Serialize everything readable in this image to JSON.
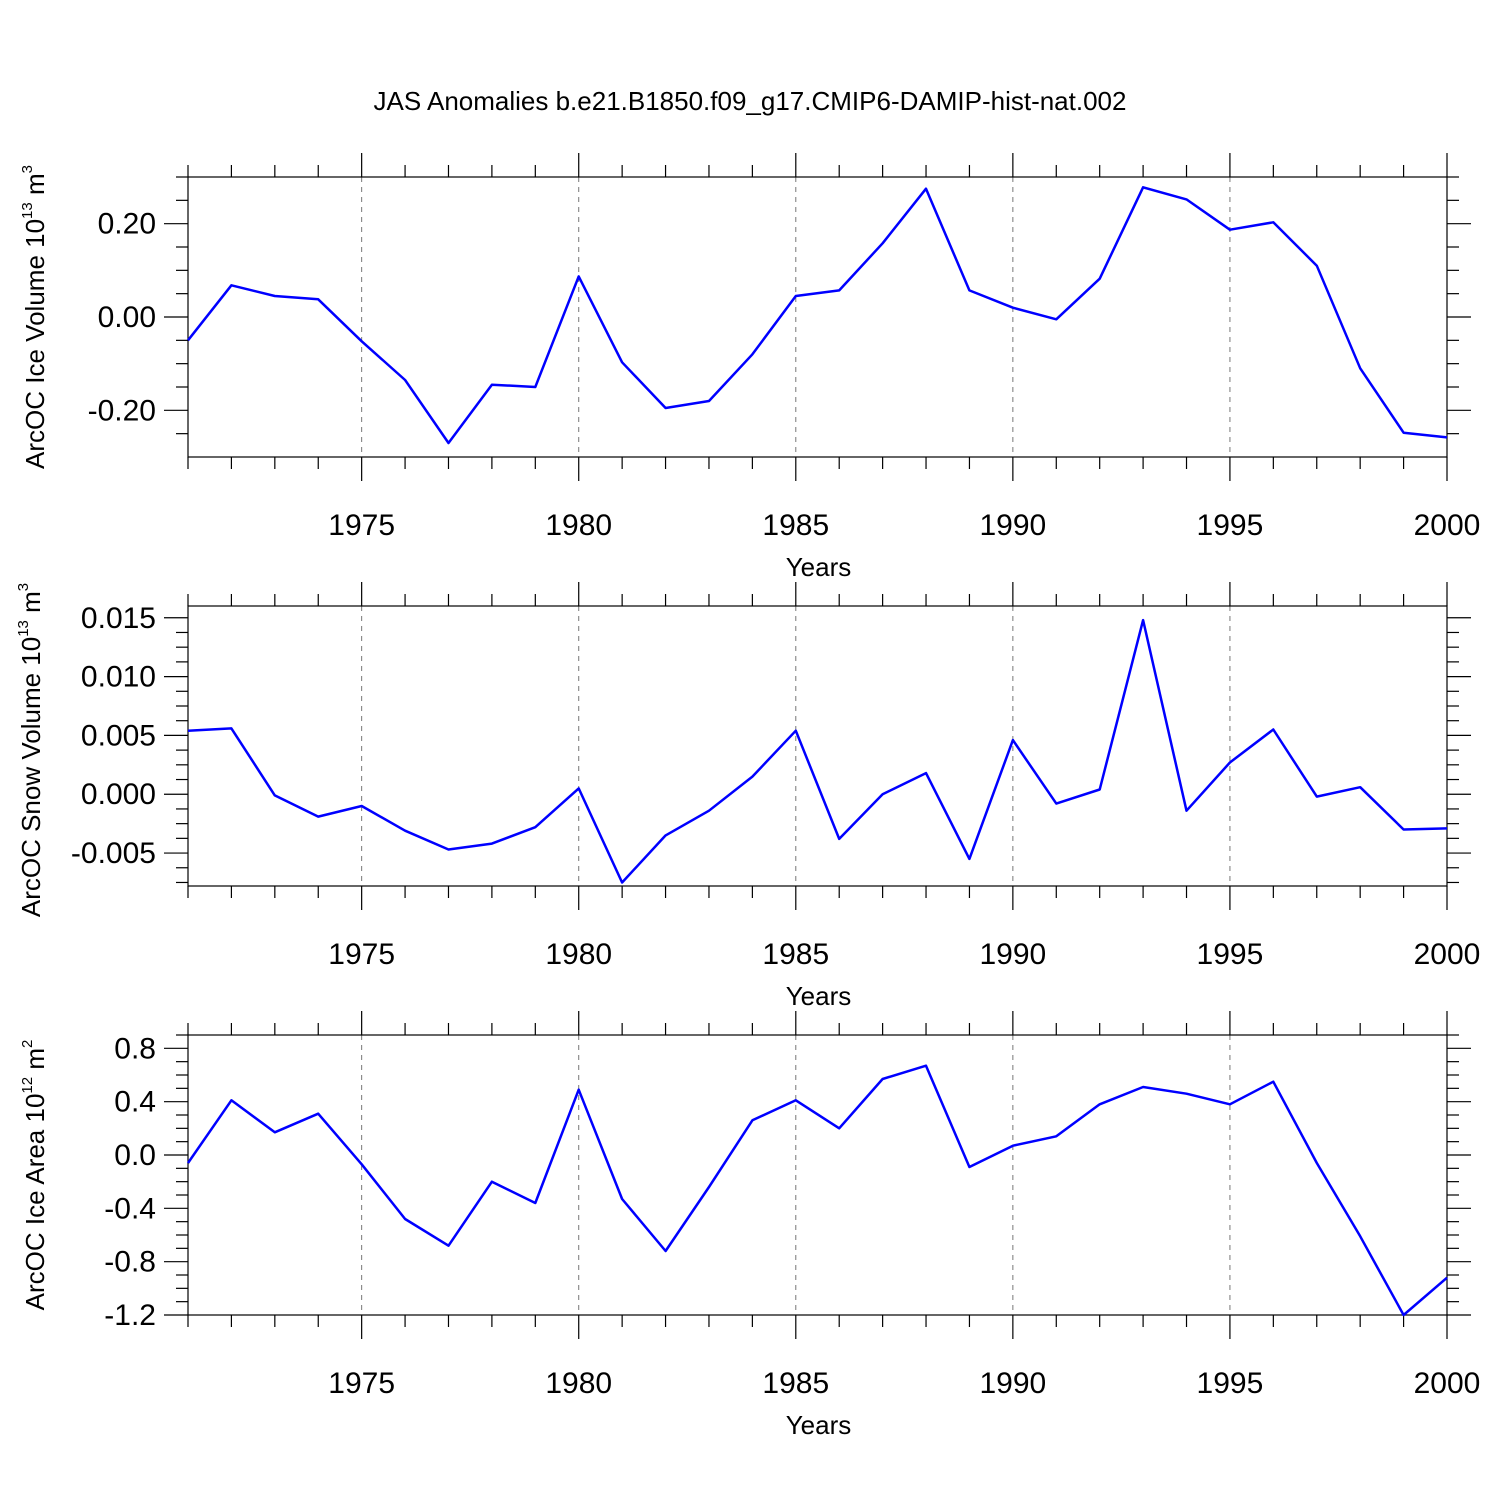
{
  "title": "JAS Anomalies b.e21.B1850.f09_g17.CMIP6-DAMIP-hist-nat.002",
  "colors": {
    "line": "#0000ff",
    "axes": "#000000",
    "grid": "#777777"
  },
  "chart_data": [
    {
      "type": "line",
      "xlabel": "Years",
      "ylabel": "ArcOC Ice Volume 10",
      "ylabel_exp": "13",
      "ylabel_unit": "m",
      "ylabel_unit_exp": "3",
      "xlim": [
        1971,
        2000
      ],
      "ylim": [
        -0.3,
        0.3
      ],
      "xticks": [
        "1975",
        "1980",
        "1985",
        "1990",
        "1995",
        "2000"
      ],
      "yticks": [
        "0.20",
        "0.00",
        "-0.20"
      ],
      "grid": "dashed vertical at major x ticks",
      "x": [
        1971,
        1972,
        1973,
        1974,
        1975,
        1976,
        1977,
        1978,
        1979,
        1980,
        1981,
        1982,
        1983,
        1984,
        1985,
        1986,
        1987,
        1988,
        1989,
        1990,
        1991,
        1992,
        1993,
        1994,
        1995,
        1996,
        1997,
        1998,
        1999,
        2000
      ],
      "values": [
        -0.05,
        0.068,
        0.045,
        0.038,
        -0.052,
        -0.135,
        -0.27,
        -0.145,
        -0.15,
        0.087,
        -0.097,
        -0.195,
        -0.18,
        -0.08,
        0.045,
        0.057,
        0.158,
        0.275,
        0.057,
        0.02,
        -0.005,
        0.082,
        0.278,
        0.252,
        0.187,
        0.203,
        0.11,
        -0.11,
        -0.248,
        -0.258
      ]
    },
    {
      "type": "line",
      "xlabel": "Years",
      "ylabel": "ArcOC Snow Volume 10",
      "ylabel_exp": "13",
      "ylabel_unit": "m",
      "ylabel_unit_exp": "3",
      "xlim": [
        1971,
        2000
      ],
      "ylim": [
        -0.0078,
        0.016
      ],
      "xticks": [
        "1975",
        "1980",
        "1985",
        "1990",
        "1995",
        "2000"
      ],
      "yticks": [
        "0.015",
        "0.010",
        "0.005",
        "0.000",
        "-0.005"
      ],
      "grid": "dashed vertical at major x ticks",
      "x": [
        1971,
        1972,
        1973,
        1974,
        1975,
        1976,
        1977,
        1978,
        1979,
        1980,
        1981,
        1982,
        1983,
        1984,
        1985,
        1986,
        1987,
        1988,
        1989,
        1990,
        1991,
        1992,
        1993,
        1994,
        1995,
        1996,
        1997,
        1998,
        1999,
        2000
      ],
      "values": [
        0.0054,
        0.0056,
        -0.0001,
        -0.0019,
        -0.001,
        -0.0031,
        -0.0047,
        -0.0042,
        -0.0028,
        0.0005,
        -0.0075,
        -0.0035,
        -0.0014,
        0.0015,
        0.0054,
        -0.0038,
        0.0,
        0.0018,
        -0.0055,
        0.0046,
        -0.0008,
        0.0004,
        0.0148,
        -0.0014,
        0.0027,
        0.0055,
        -0.0002,
        0.0006,
        -0.003,
        -0.0029
      ]
    },
    {
      "type": "line",
      "xlabel": "Years",
      "ylabel": "ArcOC Ice Area 10",
      "ylabel_exp": "12",
      "ylabel_unit": "m",
      "ylabel_unit_exp": "2",
      "xlim": [
        1971,
        2000
      ],
      "ylim": [
        -1.2,
        0.9
      ],
      "xticks": [
        "1975",
        "1980",
        "1985",
        "1990",
        "1995",
        "2000"
      ],
      "yticks": [
        "0.8",
        "0.4",
        "0.0",
        "-0.4",
        "-0.8",
        "-1.2"
      ],
      "grid": "dashed vertical at major x ticks",
      "x": [
        1971,
        1972,
        1973,
        1974,
        1975,
        1976,
        1977,
        1978,
        1979,
        1980,
        1981,
        1982,
        1983,
        1984,
        1985,
        1986,
        1987,
        1988,
        1989,
        1990,
        1991,
        1992,
        1993,
        1994,
        1995,
        1996,
        1997,
        1998,
        1999,
        2000
      ],
      "values": [
        -0.06,
        0.41,
        0.17,
        0.31,
        -0.07,
        -0.48,
        -0.68,
        -0.2,
        -0.36,
        0.49,
        -0.33,
        -0.72,
        -0.24,
        0.26,
        0.41,
        0.2,
        0.57,
        0.67,
        -0.09,
        0.07,
        0.14,
        0.38,
        0.51,
        0.46,
        0.38,
        0.55,
        -0.06,
        -0.61,
        -1.2,
        -0.92
      ]
    }
  ]
}
